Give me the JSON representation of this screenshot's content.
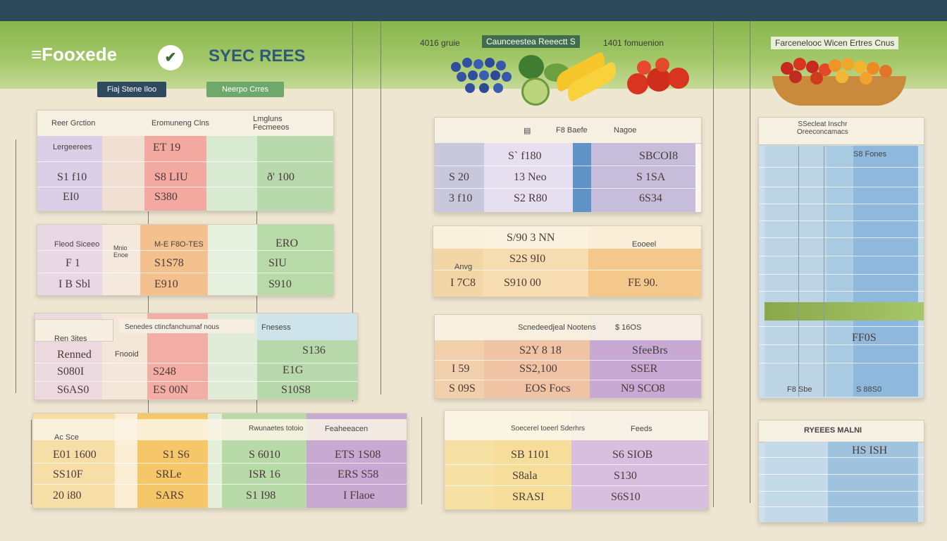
{
  "header": {
    "logo_text": "≡Fooxede",
    "logo_badge": "✔",
    "brand_title": "SYEC REES",
    "tag_left": "Fiaj Stene Iloo",
    "tag_mid": "Neerpo Crres",
    "center_caption_a": "4016 gruie",
    "center_caption_b": "Caunceestea Reeectt S",
    "center_caption_c": "1401 fomuenion",
    "right_caption": "Farcenelooc Wicen Ertres Cnus"
  },
  "left_tables": [
    {
      "head": [
        "Reer Grction",
        "Eromuneng Clns",
        "Lmgluns Fecmeeos"
      ],
      "rows": [
        [
          "Lergeerees",
          "ET 19",
          ""
        ],
        [
          "S1 f10",
          "S8 LIU",
          "ð' 100"
        ],
        [
          "EI0",
          "S380",
          ""
        ]
      ]
    },
    {
      "head": [
        "Fleod Siceeo",
        "Mnio Enoe",
        "M-E F8O-TES"
      ],
      "rows": [
        [
          "",
          "",
          "ERO"
        ],
        [
          "F 1",
          "S1S78",
          "SIU"
        ],
        [
          "I B Sbl",
          "E910",
          "S910"
        ]
      ]
    },
    {
      "head": [
        "Ren 3ites",
        "Senedes ctincfanchumaf nous",
        "Fnesess"
      ],
      "rows": [
        [
          "Renned",
          "Fnooid",
          "S136"
        ],
        [
          "S080I",
          "S248",
          "E1G"
        ],
        [
          "S6AS0",
          "ES 00N",
          "S10S8"
        ]
      ]
    },
    {
      "head": [
        "Ac Sce",
        "Rwunaetes totoio",
        "Feaheeacen"
      ],
      "rows": [
        [
          "E01 1600",
          "S1 S6",
          "S 6010",
          "ETS 1S08"
        ],
        [
          "SS10F",
          "SRLe",
          "ISR 16",
          "ERS S58"
        ],
        [
          "20 i80",
          "SARS",
          "S1 I98",
          "I Flaoe"
        ]
      ]
    }
  ],
  "mid_tables": [
    {
      "head": [
        "F8 Baefe",
        "Nagoe"
      ],
      "rows": [
        [
          "S` f180",
          "SBCOI8"
        ],
        [
          "13 Neo",
          "S 1SA"
        ],
        [
          "S2 R80",
          "6S34"
        ]
      ],
      "left": [
        "",
        "S 20",
        "3 f10"
      ]
    },
    {
      "head": [
        "S/90 3 NN",
        "Eooeel"
      ],
      "rows": [
        [
          "S2S 9I0",
          ""
        ],
        [
          "",
          ""
        ],
        [
          "S910 00",
          "FE 90."
        ]
      ],
      "left": [
        "",
        "Anvg",
        "I 7C8"
      ]
    },
    {
      "head": [
        "Scnedeedjeal Nootens",
        "$ 16OS"
      ],
      "rows": [
        [
          "S2Y 8 18",
          "SfeeBrs"
        ],
        [
          "SS2,100",
          "SSER"
        ],
        [
          "EOS Focs",
          "N9 SCO8"
        ]
      ],
      "left": [
        "",
        "I 59",
        "S 09S"
      ]
    },
    {
      "head": [
        "Soecerel toeerl Sderhrs",
        "Feeds"
      ],
      "rows": [
        [
          "SB 1101",
          "S6 SIOB"
        ],
        [
          "S8ala",
          "S130"
        ],
        [
          "SRASI",
          "S6S10"
        ]
      ],
      "left": [
        "",
        "",
        ""
      ]
    }
  ],
  "right_tables": [
    {
      "head": "SSecleat Inschr\nOreeconcamacs",
      "rows": [
        "S8 Fones",
        "",
        "",
        "",
        "",
        "",
        "",
        "",
        "",
        "FF0S",
        "",
        "S 88S0"
      ],
      "left_label": "F8 Sbe"
    },
    {
      "head": "RYEEES MALNI",
      "rows": [
        "HS ISH"
      ]
    }
  ],
  "colors": {
    "band": "#88b64e",
    "topbar": "#2e4a5a",
    "red": "#f2a49b",
    "green": "#b5d8aa",
    "orange": "#f3c58c",
    "purple": "#c9b3d7",
    "blue": "#9fc4e0",
    "yellow": "#f6d98a"
  }
}
